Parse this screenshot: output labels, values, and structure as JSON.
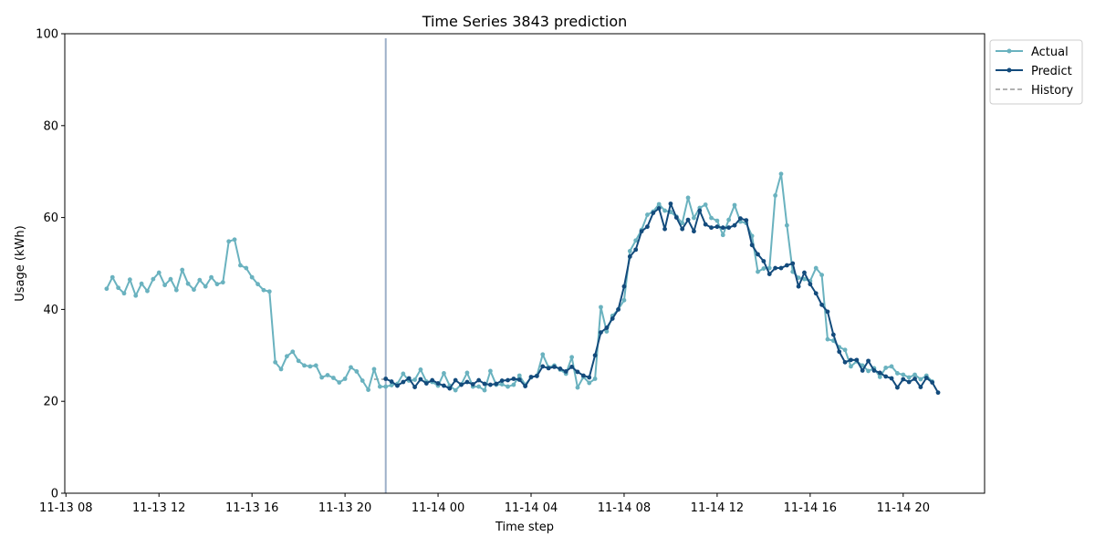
{
  "chart_data": {
    "type": "line",
    "title": "Time Series 3843 prediction",
    "xlabel": "Time step",
    "ylabel": "Usage (kWh)",
    "ylim": [
      0,
      100
    ],
    "y_ticks": [
      0,
      20,
      40,
      60,
      80,
      100
    ],
    "x_ticks": [
      "11-13 08",
      "11-13 12",
      "11-13 16",
      "11-13 20",
      "11-14 00",
      "11-14 04",
      "11-14 08",
      "11-14 12",
      "11-14 16",
      "11-14 20"
    ],
    "x_tick_hours": [
      8,
      12,
      16,
      20,
      24,
      28,
      32,
      36,
      40,
      44
    ],
    "xlim_hours": [
      7.95,
      47.5
    ],
    "x_unit_note": "x values are hours since 11-13 00:00",
    "split_hour": 21.75,
    "legend": {
      "placement": "outside-right-top",
      "entries": [
        "Actual",
        "Predict",
        "History"
      ]
    },
    "colors": {
      "actual": "#6ab2bf",
      "predict": "#134b7c",
      "history": "#999999",
      "split_line": "#9db0c8"
    },
    "series": [
      {
        "name": "Actual",
        "x_start": 9.75,
        "x_step": 0.25,
        "values": [
          44.5,
          47,
          44.7,
          43.5,
          46.5,
          43,
          45.6,
          44,
          46.6,
          48,
          45.3,
          46.6,
          44.2,
          48.6,
          45.6,
          44.3,
          46.4,
          45,
          47,
          45.5,
          45.9,
          54.8,
          55.2,
          49.6,
          49,
          47,
          45.5,
          44.2,
          43.9,
          28.5,
          27,
          29.8,
          30.8,
          28.8,
          27.8,
          27.6,
          27.8,
          25.2,
          25.7,
          25.1,
          24.1,
          24.9,
          27.4,
          26.5,
          24.5,
          22.5,
          27,
          23.2,
          23.2,
          23.5,
          23.8,
          26,
          24.5,
          24.7,
          26.9,
          24.3,
          24.2,
          23.4,
          26.1,
          23.4,
          22.4,
          23.7,
          26.2,
          23.2,
          23.2,
          22.4,
          26.6,
          23.6,
          23.7,
          23.2,
          23.6,
          25.6,
          23.6,
          25.2,
          25.6,
          30.2,
          27.4,
          27.8,
          26.9,
          26,
          29.6,
          23,
          25.3,
          24,
          24.9,
          40.5,
          35.2,
          38.6,
          40,
          42,
          52.7,
          55,
          57.3,
          60.6,
          61.3,
          62.9,
          61.5,
          61.2,
          60.2,
          58.8,
          64.3,
          59.9,
          62.1,
          62.8,
          59.9,
          59.3,
          56.2,
          59.5,
          62.7,
          59.1,
          58.8,
          56,
          48.2,
          48.9,
          49,
          64.8,
          69.5,
          58.3,
          48.2,
          46.9,
          46.6,
          46.2,
          49,
          47.5,
          33.5,
          33.2,
          31.8,
          31.2,
          27.6,
          28.7,
          27.8,
          26.6,
          27.2,
          25.3,
          27.3,
          27.6,
          26.1,
          25.8,
          25.2,
          25.8,
          24.8,
          25.6,
          24.3
        ]
      },
      {
        "name": "Predict",
        "x_start": 21.75,
        "x_step": 0.25,
        "values": [
          24.9,
          24.3,
          23.4,
          24.2,
          25,
          23.1,
          24.8,
          23.9,
          24.6,
          23.9,
          23.4,
          22.8,
          24.6,
          23.6,
          24.2,
          23.7,
          24.6,
          23.8,
          23.6,
          23.8,
          24.5,
          24.6,
          24.9,
          24.7,
          23.3,
          25.3,
          25.5,
          27.6,
          27.2,
          27.5,
          27.1,
          26.5,
          27.5,
          26.4,
          25.6,
          25.2,
          30,
          35,
          36,
          38,
          40,
          45,
          51.5,
          53,
          57,
          58,
          61,
          62,
          57.5,
          63,
          60,
          57.5,
          59.5,
          57,
          61.5,
          58.5,
          57.8,
          58,
          57.8,
          57.8,
          58.3,
          59.8,
          59.4,
          54,
          52,
          50.5,
          47.7,
          49,
          49,
          49.6,
          50,
          45,
          48,
          45.5,
          43.5,
          41,
          39.5,
          34.5,
          30.8,
          28.5,
          29,
          29,
          26.7,
          28.8,
          26.7,
          26.2,
          25.4,
          25,
          23,
          24.8,
          24.2,
          24.9,
          23.1,
          25.1,
          24.1,
          21.9
        ]
      },
      {
        "name": "History",
        "x": [
          21.25,
          21.75
        ],
        "values": [
          24.8,
          24.8
        ]
      }
    ]
  }
}
